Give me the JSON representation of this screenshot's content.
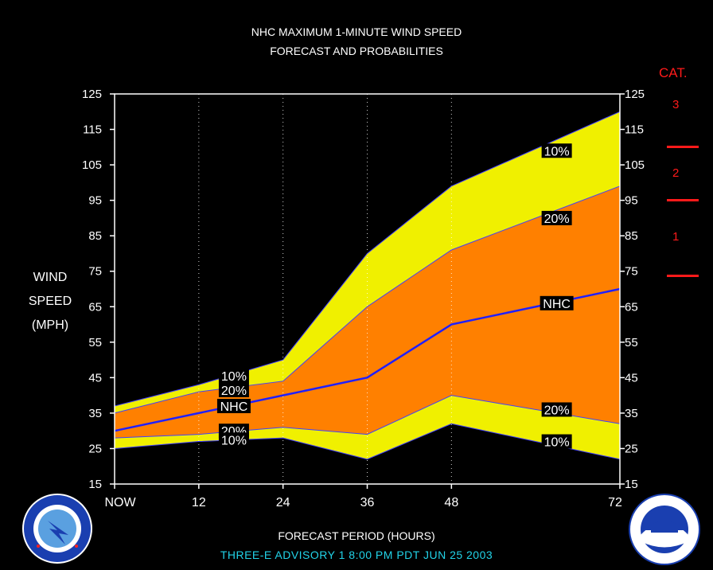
{
  "header": {
    "title_line1": "NHC MAXIMUM 1-MINUTE WIND SPEED",
    "title_line2": "FORECAST AND PROBABILITIES"
  },
  "yaxis": {
    "label_line1": "WIND",
    "label_line2": "SPEED",
    "label_line3": "(MPH)",
    "ticks": [
      "125",
      "115",
      "105",
      "95",
      "85",
      "75",
      "65",
      "55",
      "45",
      "35",
      "25",
      "15"
    ]
  },
  "xaxis": {
    "label": "FORECAST PERIOD (HOURS)",
    "ticks": [
      "NOW",
      "12",
      "24",
      "36",
      "48",
      "72"
    ]
  },
  "category": {
    "title": "CAT.",
    "labels": [
      "3",
      "2",
      "1"
    ],
    "color": "#ff1a1a"
  },
  "footer": {
    "advisory": "THREE-E   ADVISORY  1 8:00  PM  PDT  JUN  25  2003"
  },
  "colors": {
    "band10": "#f0f000",
    "band20": "#ff8000",
    "nhc_line": "#2020ff",
    "background": "#000000"
  },
  "chart_data": {
    "type": "area",
    "title": "NHC MAXIMUM 1-MINUTE WIND SPEED FORECAST AND PROBABILITIES",
    "xlabel": "FORECAST PERIOD (HOURS)",
    "ylabel": "WIND SPEED (MPH)",
    "xlim": [
      0,
      72
    ],
    "ylim": [
      15,
      125
    ],
    "x": [
      0,
      12,
      24,
      36,
      48,
      72
    ],
    "xticklabels": [
      "NOW",
      "12",
      "24",
      "36",
      "48",
      "72"
    ],
    "grid": "vertical dotted at 12, 24, 36, 48",
    "series": [
      {
        "name": "10%",
        "position": "upper",
        "values": [
          37,
          43,
          50,
          80,
          99,
          120
        ]
      },
      {
        "name": "20%",
        "position": "upper",
        "values": [
          35,
          41,
          44,
          65,
          81,
          99
        ]
      },
      {
        "name": "NHC",
        "values": [
          30,
          35,
          40,
          45,
          60,
          70
        ]
      },
      {
        "name": "20%",
        "position": "lower",
        "values": [
          28,
          29,
          31,
          29,
          40,
          32
        ]
      },
      {
        "name": "10%",
        "position": "lower",
        "values": [
          25,
          27,
          28,
          22,
          32,
          22
        ]
      }
    ],
    "annotations": [
      {
        "text": "10%",
        "x": 17,
        "y": 45.5
      },
      {
        "text": "20%",
        "x": 17,
        "y": 41.5
      },
      {
        "text": "NHC",
        "x": 17,
        "y": 37
      },
      {
        "text": "20%",
        "x": 17,
        "y": 30
      },
      {
        "text": "10%",
        "x": 17,
        "y": 27.5
      },
      {
        "text": "10%",
        "x": 63,
        "y": 109
      },
      {
        "text": "20%",
        "x": 63,
        "y": 90
      },
      {
        "text": "NHC",
        "x": 63,
        "y": 66
      },
      {
        "text": "20%",
        "x": 63,
        "y": 36
      },
      {
        "text": "10%",
        "x": 63,
        "y": 27
      }
    ],
    "categories_scale": [
      {
        "label": "3",
        "min": 111
      },
      {
        "label": "2",
        "min": 96,
        "max": 110
      },
      {
        "label": "1",
        "min": 74,
        "max": 95
      }
    ]
  }
}
